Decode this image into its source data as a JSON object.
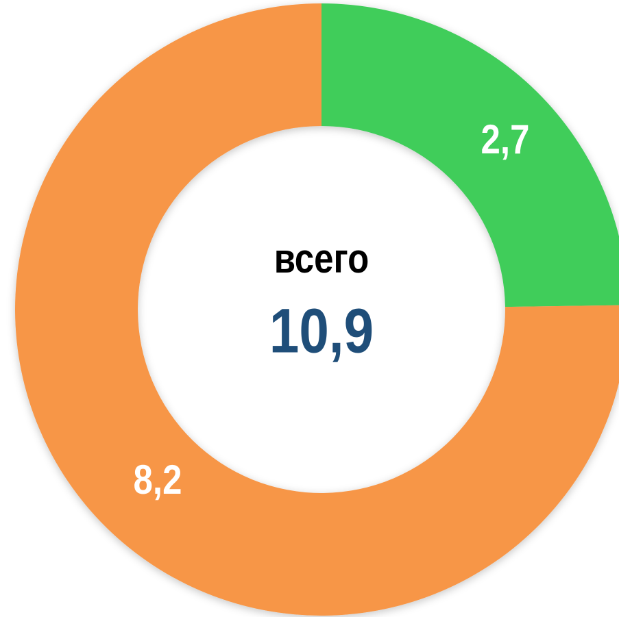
{
  "chart_data": {
    "type": "donut",
    "values": [
      2.7,
      8.2
    ],
    "value_labels": [
      "2,7",
      "8,2"
    ],
    "colors": [
      "#41cd5a",
      "#f79646"
    ],
    "center_title": "всего",
    "total": {
      "value": 10.9,
      "label": "10,9"
    }
  }
}
